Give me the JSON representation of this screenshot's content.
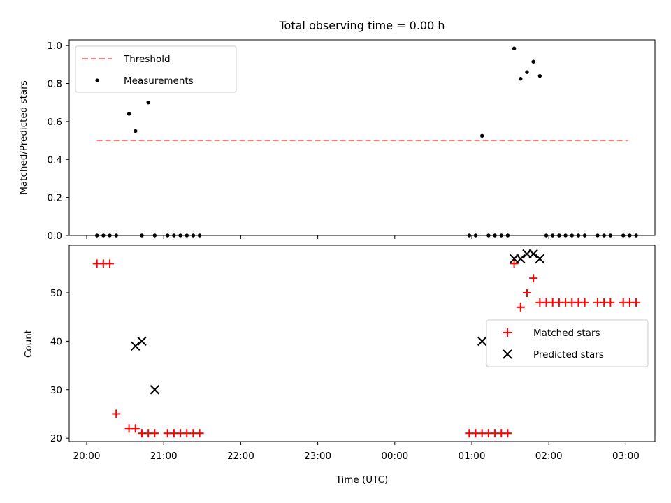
{
  "chart_data": {
    "title": "Total observing time = 0.00 h",
    "xlabel": "Time (UTC)",
    "x_ticks": [
      "20:00",
      "21:00",
      "22:00",
      "23:00",
      "00:00",
      "01:00",
      "02:00",
      "03:00"
    ],
    "panels": [
      {
        "id": "ratio",
        "type": "scatter",
        "ylabel": "Matched/Predicted stars",
        "ylim": [
          0.0,
          1.03
        ],
        "y_ticks": [
          "0.0",
          "0.2",
          "0.4",
          "0.6",
          "0.8",
          "1.0"
        ],
        "y_tick_values": [
          0.0,
          0.2,
          0.4,
          0.6,
          0.8,
          1.0
        ],
        "legend": {
          "placement": "upper left",
          "entries": [
            "Threshold",
            "Measurements"
          ]
        },
        "threshold": {
          "name": "Threshold",
          "value": 0.5,
          "x_start": "20:08",
          "x_end": "03:02",
          "color": "#ff7f7f"
        },
        "series": [
          {
            "name": "Measurements",
            "color": "#000000",
            "x": [
              "20:08",
              "20:13",
              "20:18",
              "20:23",
              "20:33",
              "20:38",
              "20:43",
              "20:48",
              "20:53",
              "21:03",
              "21:08",
              "21:13",
              "21:18",
              "21:23",
              "21:28",
              "00:58",
              "01:03",
              "01:08",
              "01:13",
              "01:18",
              "01:23",
              "01:28",
              "01:33",
              "01:38",
              "01:43",
              "01:48",
              "01:53",
              "01:58",
              "02:03",
              "02:08",
              "02:13",
              "02:18",
              "02:23",
              "02:28",
              "02:38",
              "02:43",
              "02:48",
              "02:58",
              "03:03",
              "03:08"
            ],
            "y": [
              0,
              0,
              0,
              0,
              0.64,
              0.55,
              0,
              0.7,
              0,
              0,
              0,
              0,
              0,
              0,
              0,
              0,
              0,
              0.525,
              0,
              0,
              0,
              0,
              0.985,
              0.825,
              0.86,
              0.915,
              0.84,
              0,
              0,
              0,
              0,
              0,
              0,
              0,
              0,
              0,
              0,
              0,
              0,
              0
            ]
          }
        ]
      },
      {
        "id": "counts",
        "type": "scatter",
        "ylabel": "Count",
        "ylim": [
          19.3,
          59.8
        ],
        "y_ticks": [
          "20",
          "30",
          "40",
          "50"
        ],
        "y_tick_values": [
          20,
          30,
          40,
          50
        ],
        "legend": {
          "placement": "center right",
          "entries": [
            "Matched stars",
            "Predicted stars"
          ]
        },
        "series": [
          {
            "name": "Matched stars",
            "marker": "plus",
            "color": "#ff0000",
            "x": [
              "20:08",
              "20:13",
              "20:18",
              "20:23",
              "20:33",
              "20:38",
              "20:43",
              "20:48",
              "20:53",
              "21:03",
              "21:08",
              "21:13",
              "21:18",
              "21:23",
              "21:28",
              "00:58",
              "01:03",
              "01:08",
              "01:13",
              "01:18",
              "01:23",
              "01:28",
              "01:33",
              "01:38",
              "01:43",
              "01:48",
              "01:53",
              "01:58",
              "02:03",
              "02:08",
              "02:13",
              "02:18",
              "02:23",
              "02:28",
              "02:38",
              "02:43",
              "02:48",
              "02:58",
              "03:03",
              "03:08"
            ],
            "y": [
              56,
              56,
              56,
              25,
              22,
              22,
              21,
              21,
              21,
              21,
              21,
              21,
              21,
              21,
              21,
              21,
              21,
              21,
              21,
              21,
              21,
              21,
              56,
              47,
              50,
              53,
              48,
              48,
              48,
              48,
              48,
              48,
              48,
              48,
              48,
              48,
              48,
              48,
              48,
              48
            ]
          },
          {
            "name": "Predicted stars",
            "marker": "x",
            "color": "#000000",
            "x": [
              "20:38",
              "20:43",
              "20:53",
              "01:08",
              "01:33",
              "01:38",
              "01:43",
              "01:48",
              "01:53"
            ],
            "y": [
              39,
              40,
              30,
              40,
              57,
              57,
              58,
              58,
              57
            ]
          }
        ]
      }
    ]
  }
}
